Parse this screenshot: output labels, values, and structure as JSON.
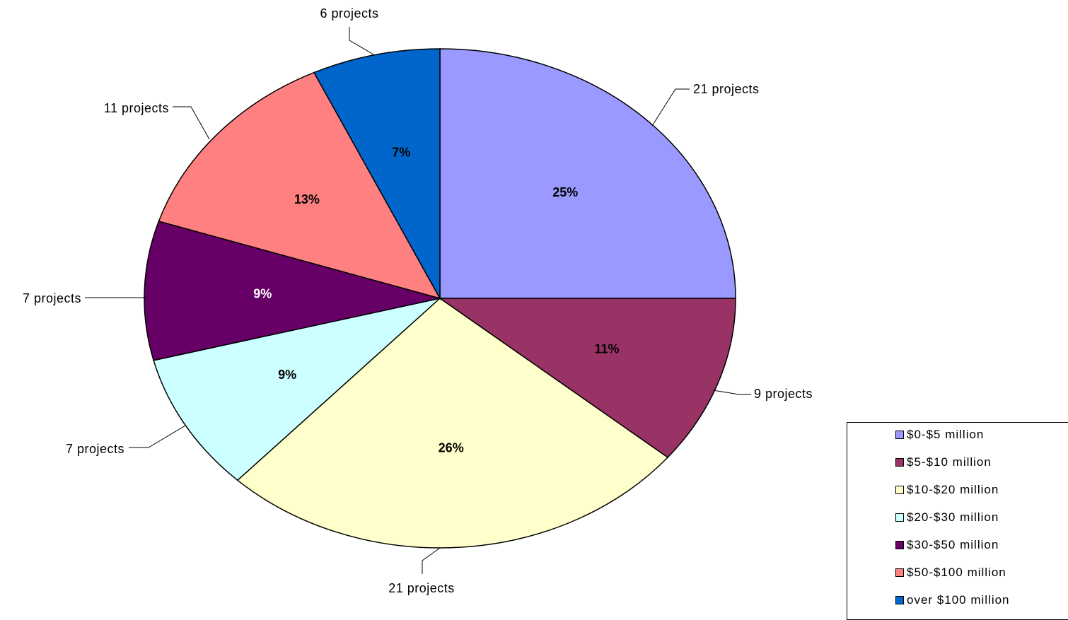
{
  "chart_data": {
    "type": "pie",
    "slices": [
      {
        "name": "$0-$5 million",
        "value": 25,
        "percent_label": "25%",
        "count_label": "21 projects",
        "color": "#9999FF"
      },
      {
        "name": "$5-$10 million",
        "value": 11,
        "percent_label": "11%",
        "count_label": "9 projects",
        "color": "#993366"
      },
      {
        "name": "$10-$20 million",
        "value": 26,
        "percent_label": "26%",
        "count_label": "21 projects",
        "color": "#FFFFCC"
      },
      {
        "name": "$20-$30 million",
        "value": 9,
        "percent_label": "9%",
        "count_label": "7 projects",
        "color": "#CCFFFF"
      },
      {
        "name": "$30-$50 million",
        "value": 9,
        "percent_label": "9%",
        "count_label": "7 projects",
        "color": "#660066"
      },
      {
        "name": "$50-$100 million",
        "value": 13,
        "percent_label": "13%",
        "count_label": "11 projects",
        "color": "#FF8080"
      },
      {
        "name": "over $100 million",
        "value": 7,
        "percent_label": "7%",
        "count_label": "6 projects",
        "color": "#0066CC"
      }
    ],
    "legend_position": "bottom-right"
  }
}
